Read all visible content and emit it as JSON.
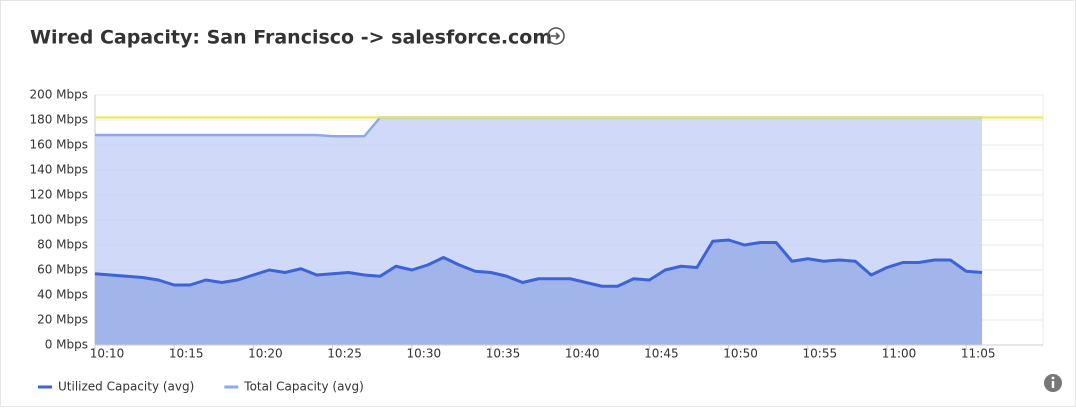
{
  "chart_data": {
    "type": "area",
    "title": "Wired Capacity: San Francisco -> salesforce.com",
    "categories": [
      "10:10",
      null,
      null,
      null,
      null,
      "10:15",
      null,
      null,
      null,
      null,
      "10:20",
      null,
      null,
      null,
      null,
      "10:25",
      null,
      null,
      null,
      null,
      "10:30",
      null,
      null,
      null,
      null,
      "10:35",
      null,
      null,
      null,
      null,
      "10:40",
      null,
      null,
      null,
      null,
      "10:45",
      null,
      null,
      null,
      null,
      "10:50",
      null,
      null,
      null,
      null,
      "10:55",
      null,
      null,
      null,
      null,
      "11:00",
      null,
      null,
      null,
      null,
      "11:05",
      null
    ],
    "series": [
      {
        "name": "Utilized Capacity (avg)",
        "color": "#3d64d6",
        "fill": "#9aaee9",
        "values": [
          57,
          56,
          55,
          54,
          52,
          48,
          48,
          52,
          50,
          52,
          56,
          60,
          58,
          61,
          56,
          57,
          58,
          56,
          55,
          63,
          60,
          64,
          70,
          64,
          59,
          58,
          55,
          50,
          53,
          53,
          53,
          50,
          47,
          47,
          53,
          52,
          60,
          63,
          62,
          83,
          84,
          80,
          82,
          82,
          67,
          69,
          67,
          68,
          67,
          56,
          62,
          66,
          66,
          68,
          68,
          59,
          58
        ]
      },
      {
        "name": "Total Capacity (avg)",
        "color": "#8ea8ee",
        "fill": "#c8d2f6",
        "values": [
          168,
          168,
          168,
          168,
          168,
          168,
          168,
          168,
          168,
          168,
          168,
          168,
          168,
          168,
          168,
          167,
          167,
          167,
          182,
          182,
          182,
          182,
          182,
          182,
          182,
          182,
          182,
          182,
          182,
          182,
          182,
          182,
          182,
          182,
          182,
          182,
          182,
          182,
          182,
          182,
          182,
          182,
          182,
          182,
          182,
          182,
          182,
          182,
          182,
          182,
          182,
          182,
          182,
          182,
          182,
          182,
          182
        ]
      }
    ],
    "threshold": {
      "value": 182,
      "color": "#ecea3a"
    },
    "ylim": [
      0,
      200
    ],
    "yticks": [
      {
        "value": 0,
        "label": "0 Mbps"
      },
      {
        "value": 20,
        "label": "20 Mbps"
      },
      {
        "value": 40,
        "label": "40 Mbps"
      },
      {
        "value": 60,
        "label": "60 Mbps"
      },
      {
        "value": 80,
        "label": "80 Mbps"
      },
      {
        "value": 100,
        "label": "100 Mbps"
      },
      {
        "value": 120,
        "label": "120 Mbps"
      },
      {
        "value": 140,
        "label": "140 Mbps"
      },
      {
        "value": 160,
        "label": "160 Mbps"
      },
      {
        "value": 180,
        "label": "180 Mbps"
      },
      {
        "value": 200,
        "label": "200 Mbps"
      }
    ],
    "grid": true,
    "legend": "bottom-left"
  }
}
